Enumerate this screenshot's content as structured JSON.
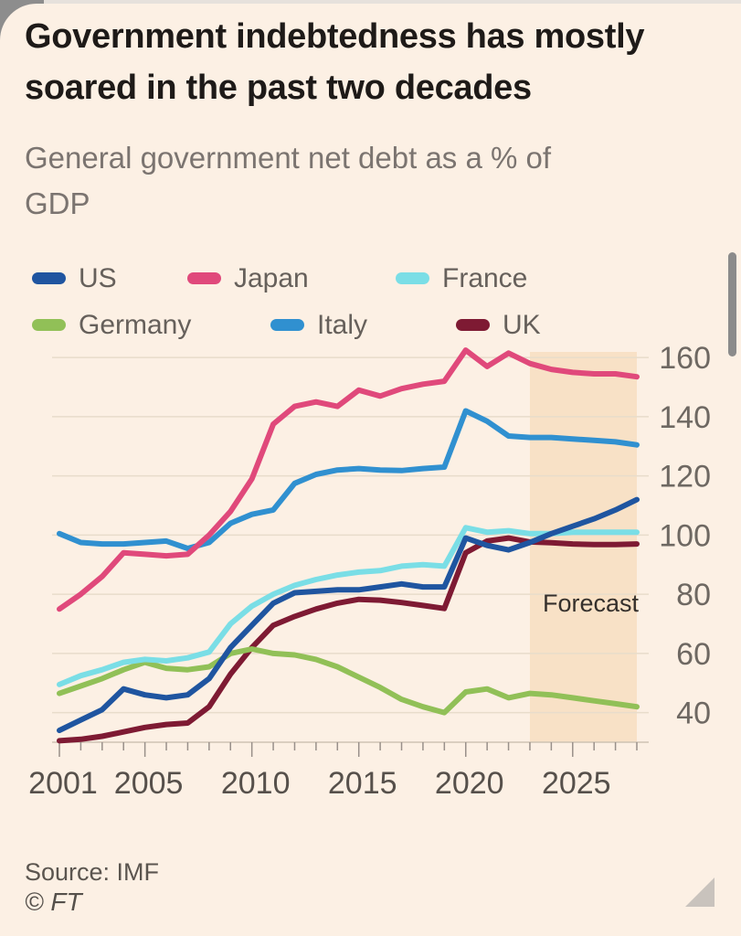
{
  "header": {
    "title": "Government indebtedness has mostly soared in the past two decades",
    "subtitle": "General government net debt as a % of GDP"
  },
  "chart_data": {
    "type": "line",
    "title": "Government indebtedness has mostly soared in the past two decades",
    "subtitle": "General government net debt as a % of GDP",
    "grid": true,
    "legend_position": "top",
    "x": [
      2001,
      2002,
      2003,
      2004,
      2005,
      2006,
      2007,
      2008,
      2009,
      2010,
      2011,
      2012,
      2013,
      2014,
      2015,
      2016,
      2017,
      2018,
      2019,
      2020,
      2021,
      2022,
      2023,
      2024,
      2025,
      2026,
      2027,
      2028
    ],
    "xlim": [
      2001,
      2028
    ],
    "ylim": [
      30,
      165
    ],
    "y_ticks": [
      40,
      60,
      80,
      100,
      120,
      140,
      160
    ],
    "x_tick_years": [
      2001,
      2005,
      2010,
      2015,
      2020,
      2025
    ],
    "x_tick_labels": [
      "2001",
      "2005",
      "2010",
      "2015",
      "2020",
      "2025"
    ],
    "forecast": {
      "label": "Forecast",
      "start": 2023,
      "end": 2028,
      "band_color": "#f8e1c6"
    },
    "series": [
      {
        "name": "US",
        "color": "#1f55a0",
        "values": [
          34,
          37.5,
          41,
          48,
          46,
          45,
          46,
          51.5,
          62,
          69.5,
          77,
          80.5,
          81,
          81.5,
          81.5,
          82.5,
          83.5,
          82.5,
          82.5,
          99,
          96.5,
          95,
          97.5,
          100.5,
          103,
          105.5,
          108.5,
          112
        ]
      },
      {
        "name": "Japan",
        "color": "#e0497b",
        "values": [
          75,
          80,
          86,
          94,
          93.5,
          93,
          93.5,
          100,
          108,
          119,
          137.5,
          143.5,
          145,
          143.5,
          149,
          147,
          149.5,
          151,
          152,
          162.5,
          157,
          161.5,
          158,
          156,
          155,
          154.5,
          154.5,
          153.5
        ]
      },
      {
        "name": "France",
        "color": "#7adee6",
        "values": [
          49.5,
          52.5,
          54.5,
          57,
          58,
          57.5,
          58.5,
          60.5,
          70,
          76,
          80,
          83,
          85,
          86.5,
          87.5,
          88,
          89.5,
          90,
          89.5,
          102.5,
          101,
          101.5,
          100.5,
          100.5,
          101,
          101,
          101,
          101
        ]
      },
      {
        "name": "Germany",
        "color": "#91c057",
        "values": [
          46.5,
          49,
          51.5,
          54.5,
          57,
          55,
          54.5,
          55.5,
          60,
          61.5,
          60,
          59.5,
          58,
          55.5,
          52,
          48.5,
          44.5,
          42,
          40,
          47,
          48,
          45,
          46.5,
          46,
          45,
          44,
          43,
          42
        ]
      },
      {
        "name": "Italy",
        "color": "#3090d0",
        "values": [
          100.5,
          97.5,
          97,
          97,
          97.5,
          98,
          95.5,
          97.5,
          104,
          107,
          108.5,
          117.5,
          120.5,
          122,
          122.5,
          122,
          121.8,
          122.5,
          123,
          142,
          138.5,
          133.5,
          133,
          133,
          132.5,
          132,
          131.5,
          130.5
        ]
      },
      {
        "name": "UK",
        "color": "#7e1a33",
        "values": [
          30.5,
          31,
          32,
          33.5,
          35,
          36,
          36.5,
          42,
          53,
          62,
          69.5,
          72.5,
          75,
          77,
          78.3,
          78,
          77.2,
          76.2,
          75.2,
          94,
          98,
          99,
          97.7,
          97.4,
          97,
          96.8,
          96.8,
          97
        ]
      }
    ],
    "colors": {
      "background": "#fcf0e4",
      "gridline": "#e8dccb",
      "axis_line": "#cec2b4",
      "tick": "#99908a"
    }
  },
  "footer": {
    "source": "Source: IMF",
    "credit": "© FT"
  }
}
